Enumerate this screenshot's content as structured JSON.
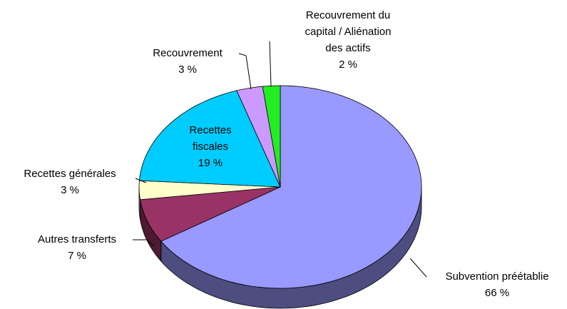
{
  "chart_data": {
    "type": "pie",
    "categories": [
      "Subvention préétablie",
      "Autres transferts",
      "Recettes générales",
      "Recettes fiscales",
      "Recouvrement",
      "Recouvrement du capital / Aliénation des actifs"
    ],
    "values": [
      66,
      7,
      3,
      19,
      3,
      2
    ],
    "value_labels": [
      "66 %",
      "7 %",
      "3 %",
      "19 %",
      "3 %",
      "2 %"
    ],
    "colors": [
      "#9999ff",
      "#993366",
      "#ffffcc",
      "#00ccff",
      "#cc99ff",
      "#22ee22"
    ]
  }
}
